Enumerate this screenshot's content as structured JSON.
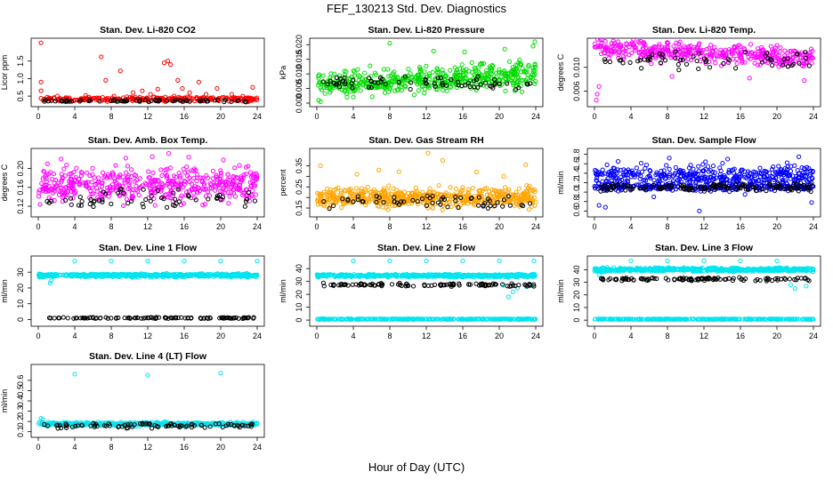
{
  "page_title": "FEF_130213  Std. Dev. Diagnostics",
  "x_label": "Hour of Day (UTC)",
  "chart_data": [
    {
      "id": "co2",
      "type": "scatter",
      "title": "Stan. Dev. Li-820 CO2",
      "ylabel": "Licor ppm",
      "xlim": [
        0,
        24
      ],
      "ylim": [
        0.3,
        2.05
      ],
      "xticks": [
        0,
        4,
        8,
        12,
        16,
        20,
        24
      ],
      "yticks": [
        0.5,
        1.0,
        1.5
      ],
      "ytick_labels": [
        "0.5",
        "1.0",
        "1.5"
      ],
      "series": [
        {
          "color": "#ff0000",
          "points": [
            [
              0.3,
              2.02
            ],
            [
              0.3,
              0.9
            ],
            [
              0.3,
              0.65
            ],
            [
              6.9,
              1.62
            ],
            [
              9.0,
              1.22
            ],
            [
              7.4,
              0.95
            ],
            [
              13.8,
              1.45
            ],
            [
              14.2,
              1.5
            ],
            [
              14.5,
              1.4
            ],
            [
              15.3,
              0.95
            ],
            [
              15.8,
              0.72
            ],
            [
              17.6,
              0.9
            ],
            [
              13.1,
              0.7
            ],
            [
              10.4,
              0.6
            ],
            [
              19.6,
              0.72
            ],
            [
              23.5,
              0.75
            ],
            [
              21.2,
              0.55
            ],
            [
              11.4,
              0.65
            ],
            [
              2.1,
              0.5
            ],
            [
              5.2,
              0.52
            ],
            [
              8.3,
              0.5
            ],
            [
              12.3,
              0.55
            ],
            [
              16.6,
              0.6
            ],
            [
              18.4,
              0.55
            ],
            [
              22.4,
              0.5
            ],
            [
              3.4,
              0.45
            ],
            [
              9.7,
              0.48
            ],
            [
              14.9,
              0.5
            ],
            [
              20.3,
              0.47
            ]
          ],
          "band": {
            "from": 0.33,
            "to": 0.5,
            "count": 260
          }
        }
      ],
      "black": {
        "from": 0.33,
        "to": 0.4,
        "count": 70
      }
    },
    {
      "id": "pressure",
      "type": "scatter",
      "title": "Stan. Dev. Li-820 Pressure",
      "ylabel": "kPa",
      "xlim": [
        0,
        24
      ],
      "ylim": [
        0,
        0.021
      ],
      "xticks": [
        0,
        4,
        8,
        12,
        16,
        20,
        24
      ],
      "yticks": [
        0,
        0.005,
        0.01,
        0.015,
        0.02
      ],
      "ytick_labels": [
        "0.000",
        "0.005",
        "0.010",
        "0.015",
        "0.020"
      ],
      "series": [
        {
          "color": "#00dd00",
          "points": [
            [
              8.0,
              0.0205
            ],
            [
              23.9,
              0.021
            ],
            [
              23.7,
              0.0195
            ],
            [
              20.6,
              0.0185
            ],
            [
              16.2,
              0.0175
            ],
            [
              12.8,
              0.0178
            ],
            [
              0.2,
              0.001
            ],
            [
              0.4,
              0.0005
            ]
          ],
          "band": {
            "from": 0.003,
            "to": 0.016,
            "count": 520,
            "ramp": 0.003
          }
        }
      ],
      "black": {
        "from": 0.004,
        "to": 0.01,
        "count": 70
      }
    },
    {
      "id": "temp",
      "type": "scatter",
      "title": "Stan. Dev. Li-820 Temp.",
      "ylabel": "degrees C",
      "xlim": [
        0,
        24
      ],
      "ylim": [
        0.004,
        0.0143
      ],
      "xticks": [
        0,
        4,
        8,
        12,
        16,
        20,
        24
      ],
      "yticks": [
        0.006,
        0.01
      ],
      "ytick_labels": [
        "0.006",
        "0.010"
      ],
      "series": [
        {
          "color": "#ff00ff",
          "points": [
            [
              0.2,
              0.0045
            ],
            [
              0.3,
              0.0055
            ],
            [
              0.5,
              0.0068
            ],
            [
              23.0,
              0.0078
            ],
            [
              17.0,
              0.0082
            ],
            [
              8.5,
              0.0085
            ],
            [
              3.5,
              0.014
            ],
            [
              5.4,
              0.0142
            ]
          ],
          "band": {
            "from": 0.009,
            "to": 0.0138,
            "count": 420,
            "ramp": -0.002
          }
        }
      ],
      "black": {
        "from": 0.0095,
        "to": 0.0128,
        "count": 60
      }
    },
    {
      "id": "boxtemp",
      "type": "scatter",
      "title": "Stan. Dev. Amb. Box Temp.",
      "ylabel": "degrees C",
      "xlim": [
        0,
        24
      ],
      "ylim": [
        0.105,
        0.235
      ],
      "xticks": [
        0,
        4,
        8,
        12,
        16,
        20,
        24
      ],
      "yticks": [
        0.12,
        0.16,
        0.2
      ],
      "ytick_labels": [
        "0.12",
        "0.16",
        "0.20"
      ],
      "series": [
        {
          "color": "#ff00ff",
          "points": [
            [
              14.3,
              0.232
            ],
            [
              12.5,
              0.225
            ],
            [
              16.5,
              0.224
            ],
            [
              9.6,
              0.222
            ],
            [
              2.5,
              0.22
            ],
            [
              20.3,
              0.218
            ],
            [
              23.0,
              0.205
            ],
            [
              1.0,
              0.21
            ]
          ],
          "band": {
            "from": 0.115,
            "to": 0.215,
            "count": 480
          }
        }
      ],
      "black": {
        "from": 0.112,
        "to": 0.16,
        "count": 60
      }
    },
    {
      "id": "rh",
      "type": "scatter",
      "title": "Stan. Dev. Gas Stream RH",
      "ylabel": "percent",
      "xlim": [
        0,
        24
      ],
      "ylim": [
        0.125,
        0.415
      ],
      "xticks": [
        0,
        4,
        8,
        12,
        16,
        20,
        24
      ],
      "yticks": [
        0.15,
        0.2,
        0.25,
        0.3,
        0.35
      ],
      "ytick_labels": [
        "0.15",
        "",
        "0.25",
        "",
        "0.35"
      ],
      "series": [
        {
          "color": "#ffa500",
          "points": [
            [
              12.2,
              0.41
            ],
            [
              13.8,
              0.375
            ],
            [
              22.9,
              0.355
            ],
            [
              0.4,
              0.35
            ],
            [
              6.8,
              0.33
            ],
            [
              9.0,
              0.322
            ],
            [
              17.5,
              0.32
            ],
            [
              4.4,
              0.31
            ],
            [
              20.5,
              0.3
            ]
          ],
          "band": {
            "from": 0.135,
            "to": 0.265,
            "count": 560
          }
        }
      ],
      "black": {
        "from": 0.14,
        "to": 0.22,
        "count": 60
      }
    },
    {
      "id": "sampleflow",
      "type": "scatter",
      "title": "Stan. Dev. Sample Flow",
      "ylabel": "ml/min",
      "xlim": [
        0,
        24
      ],
      "ylim": [
        0.55,
        1.85
      ],
      "xticks": [
        0,
        4,
        8,
        12,
        16,
        20,
        24
      ],
      "yticks": [
        0.6,
        0.8,
        1.0,
        1.2,
        1.4,
        1.6,
        1.8
      ],
      "ytick_labels": [
        "0.6",
        "0.8",
        "1.0",
        "1.2",
        "1.4",
        "1.6",
        "1.8"
      ],
      "series": [
        {
          "color": "#0000ff",
          "points": [
            [
              0.5,
              0.72
            ],
            [
              1.2,
              0.68
            ],
            [
              11.5,
              0.6
            ],
            [
              23.8,
              0.78
            ],
            [
              16.5,
              0.95
            ],
            [
              6.5,
              0.9
            ],
            [
              8.2,
              1.72
            ],
            [
              22.4,
              1.75
            ],
            [
              14.6,
              1.7
            ]
          ],
          "band": {
            "from": 0.98,
            "to": 1.68,
            "count": 420
          }
        },
        {
          "color": "#0000cc",
          "points": [],
          "band": {
            "from": 1.0,
            "to": 1.2,
            "count": 260
          }
        }
      ],
      "black": {
        "from": 1.0,
        "to": 1.2,
        "count": 110
      }
    },
    {
      "id": "line1",
      "type": "scatter",
      "title": "Stan. Dev. Line 1 Flow",
      "ylabel": "ml/min",
      "xlim": [
        0,
        24
      ],
      "ylim": [
        -2,
        38
      ],
      "xticks": [
        0,
        4,
        8,
        12,
        16,
        20,
        24
      ],
      "yticks": [
        0,
        10,
        20,
        30
      ],
      "ytick_labels": [
        "0",
        "10",
        "20",
        "30"
      ],
      "series": [
        {
          "color": "#00e5ee",
          "points": [
            [
              4.0,
              37
            ],
            [
              8.0,
              37
            ],
            [
              12.0,
              37
            ],
            [
              16.0,
              37
            ],
            [
              20.0,
              37
            ],
            [
              24.0,
              37
            ],
            [
              1.3,
              23
            ],
            [
              1.4,
              24.5
            ]
          ],
          "band": {
            "from": 26.5,
            "to": 29.5,
            "count": 560
          }
        }
      ],
      "black": {
        "from": 0.5,
        "to": 1.5,
        "count": 110
      }
    },
    {
      "id": "line2",
      "type": "scatter",
      "title": "Stan. Dev. Line 2 Flow",
      "ylabel": "ml/min",
      "xlim": [
        0,
        24
      ],
      "ylim": [
        -2,
        47
      ],
      "xticks": [
        0,
        4,
        8,
        12,
        16,
        20,
        24
      ],
      "yticks": [
        0,
        10,
        20,
        30,
        40
      ],
      "ytick_labels": [
        "0",
        "10",
        "20",
        "30",
        "40"
      ],
      "series": [
        {
          "color": "#00e5ee",
          "points": [
            [
              4.0,
              46
            ],
            [
              8.0,
              46
            ],
            [
              12.0,
              46
            ],
            [
              16.0,
              46
            ],
            [
              20.0,
              46
            ],
            [
              23.8,
              46
            ],
            [
              21.0,
              18
            ],
            [
              21.5,
              22
            ],
            [
              22.0,
              25
            ],
            [
              20.5,
              27
            ],
            [
              23.0,
              26
            ],
            [
              23.6,
              27
            ]
          ],
          "band": {
            "from": 33,
            "to": 36,
            "count": 520
          }
        },
        {
          "color": "#00e5ee",
          "points": [],
          "band": {
            "from": 0.3,
            "to": 1.2,
            "count": 320
          }
        }
      ],
      "black": {
        "from": 26,
        "to": 29,
        "count": 110
      }
    },
    {
      "id": "line3",
      "type": "scatter",
      "title": "Stan. Dev. Line 3 Flow",
      "ylabel": "ml/min",
      "xlim": [
        0,
        24
      ],
      "ylim": [
        -2,
        48
      ],
      "xticks": [
        0,
        4,
        8,
        12,
        16,
        20,
        24
      ],
      "yticks": [
        0,
        10,
        20,
        30,
        40
      ],
      "ytick_labels": [
        "0",
        "10",
        "20",
        "30",
        "40"
      ],
      "series": [
        {
          "color": "#00e5ee",
          "points": [
            [
              4.0,
              47
            ],
            [
              8.0,
              47
            ],
            [
              12.0,
              47
            ],
            [
              16.0,
              47
            ],
            [
              20.0,
              47
            ],
            [
              22.0,
              25
            ],
            [
              21.5,
              28
            ],
            [
              23.2,
              27
            ],
            [
              0.5,
              36
            ],
            [
              0.8,
              38
            ]
          ],
          "band": {
            "from": 38,
            "to": 42,
            "count": 520
          }
        },
        {
          "color": "#00e5ee",
          "points": [],
          "band": {
            "from": 0.3,
            "to": 1.2,
            "count": 320
          }
        }
      ],
      "black": {
        "from": 31,
        "to": 34,
        "count": 110
      }
    },
    {
      "id": "line4",
      "type": "scatter",
      "title": "Stan. Dev. Line 4 (LT) Flow",
      "ylabel": "ml/min",
      "xlim": [
        0,
        24
      ],
      "ylim": [
        0.08,
        0.72
      ],
      "xticks": [
        0,
        4,
        8,
        12,
        16,
        20,
        24
      ],
      "yticks": [
        0.1,
        0.2,
        0.3,
        0.4,
        0.5,
        0.6
      ],
      "ytick_labels": [
        "0.1",
        "0.2",
        "0.3",
        "0.4",
        "0.5",
        "0.6"
      ],
      "series": [
        {
          "color": "#00e5ee",
          "points": [
            [
              4.0,
              0.66
            ],
            [
              12.0,
              0.65
            ],
            [
              20.0,
              0.67
            ],
            [
              0.3,
              0.23
            ],
            [
              0.5,
              0.22
            ]
          ],
          "band": {
            "from": 0.15,
            "to": 0.2,
            "count": 420
          }
        }
      ],
      "black": {
        "from": 0.13,
        "to": 0.19,
        "count": 90
      }
    }
  ]
}
